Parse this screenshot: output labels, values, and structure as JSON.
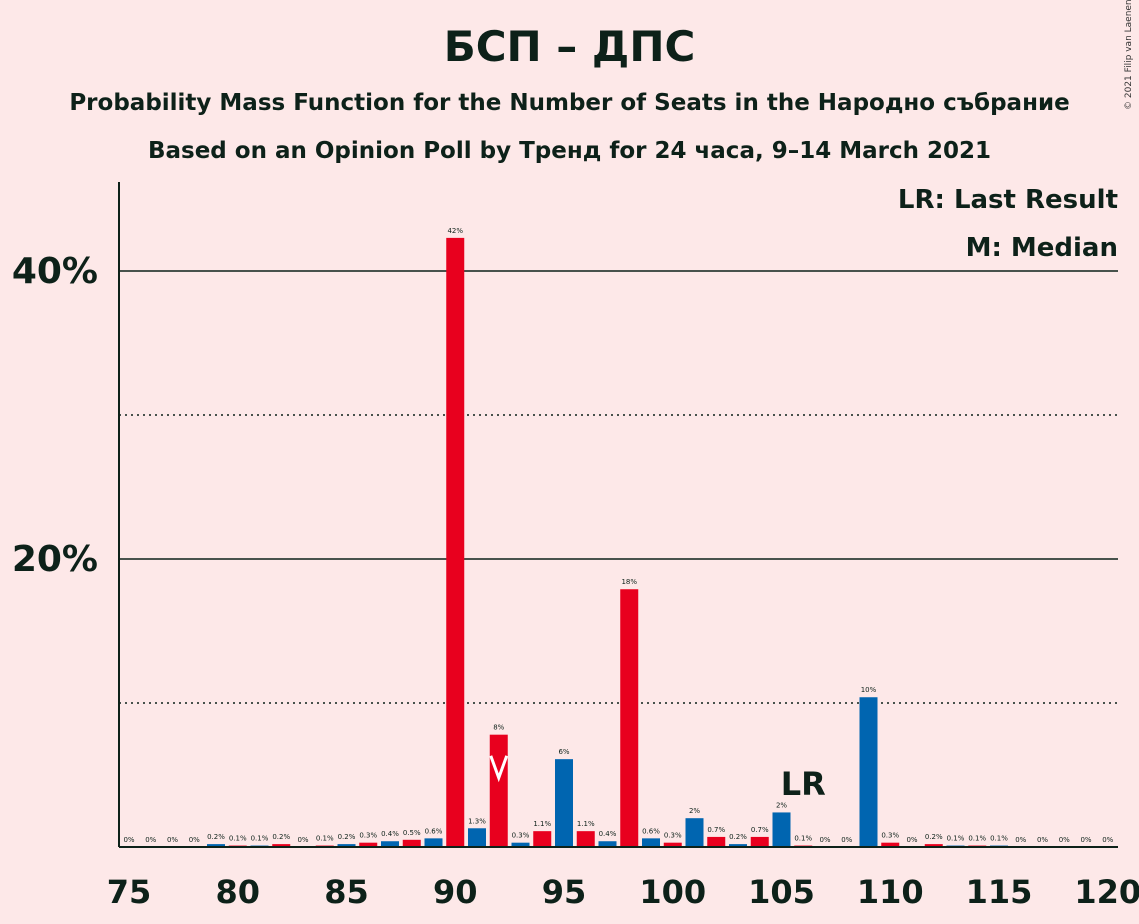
{
  "title": "БСП – ДПС",
  "subtitle1": "Probability Mass Function for the Number of Seats in the Народно събрание",
  "subtitle2": "Based on an Opinion Poll by Тренд for 24 часа, 9–14 March 2021",
  "copyright": "© 2021 Filip van Laenen",
  "legend": {
    "last_result": "LR: Last Result",
    "median": "M: Median"
  },
  "colors": {
    "background": "#FDE8E8",
    "red": "#E8001E",
    "blue": "#0065B0",
    "text": "#0d2119",
    "median_marker": "#FFFFFF"
  },
  "chart_data": {
    "type": "bar",
    "x": [
      75,
      76,
      77,
      78,
      79,
      80,
      81,
      82,
      83,
      84,
      85,
      86,
      87,
      88,
      89,
      90,
      91,
      92,
      93,
      94,
      95,
      96,
      97,
      98,
      99,
      100,
      101,
      102,
      103,
      104,
      105,
      106,
      107,
      108,
      109,
      110,
      111,
      112,
      113,
      114,
      115,
      116,
      117,
      118,
      119,
      120
    ],
    "values": [
      0,
      0,
      0,
      0,
      0.2,
      0.1,
      0.1,
      0.2,
      0,
      0.1,
      0.2,
      0.3,
      0.4,
      0.5,
      0.6,
      42.3,
      1.3,
      7.8,
      0.3,
      1.1,
      6.1,
      1.1,
      0.4,
      17.9,
      0.6,
      0.3,
      2.0,
      0.7,
      0.2,
      0.7,
      2.4,
      0.1,
      0,
      0,
      10.4,
      0.3,
      0,
      0.2,
      0.1,
      0.1,
      0.1,
      0,
      0,
      0,
      0,
      0
    ],
    "labels": [
      "0%",
      "0%",
      "0%",
      "0%",
      "0.2%",
      "0.1%",
      "0.1%",
      "0.2%",
      "0%",
      "0.1%",
      "0.2%",
      "0.3%",
      "0.4%",
      "0.5%",
      "0.6%",
      "42%",
      "1.3%",
      "8%",
      "0.3%",
      "1.1%",
      "6%",
      "1.1%",
      "0.4%",
      "18%",
      "0.6%",
      "0.3%",
      "2%",
      "0.7%",
      "0.2%",
      "0.7%",
      "2%",
      "0.1%",
      "0%",
      "0%",
      "10%",
      "0.3%",
      "0%",
      "0.2%",
      "0.1%",
      "0.1%",
      "0.1%",
      "0%",
      "0%",
      "0%",
      "0%",
      "0%"
    ],
    "bar_colors": "even seat counts red, odd seat counts blue",
    "x_ticks": [
      "75",
      "80",
      "85",
      "90",
      "95",
      "100",
      "105",
      "110",
      "115",
      "120"
    ],
    "y_ticks": [
      "20%",
      "40%"
    ],
    "y_solid_lines": [
      20,
      40
    ],
    "y_dotted_lines": [
      10,
      30
    ],
    "ylim": [
      0,
      46
    ],
    "xlim": [
      75,
      120
    ],
    "median_seat": 92,
    "median_marker": "M",
    "last_result_seat": 106,
    "last_result_label": "LR"
  }
}
